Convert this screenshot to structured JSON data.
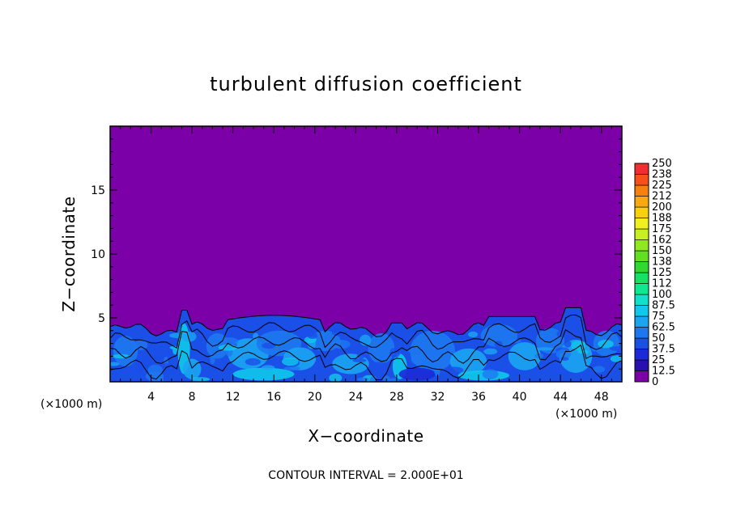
{
  "chart_data": {
    "type": "heatmap",
    "title": "turbulent diffusion coefficient",
    "xlabel": "X−coordinate",
    "ylabel": "Z−coordinate",
    "x_unit": "(×1000 m)",
    "y_unit": "(×1000 m)",
    "xlim": [
      0,
      50
    ],
    "ylim": [
      0,
      20
    ],
    "x_ticks": [
      4,
      8,
      12,
      16,
      20,
      24,
      28,
      32,
      36,
      40,
      44,
      48
    ],
    "y_ticks": [
      5,
      10,
      15
    ],
    "colorbar_levels": [
      "0",
      "12.5",
      "25",
      "37.5",
      "50",
      "62.5",
      "75",
      "87.5",
      "100",
      "112",
      "125",
      "138",
      "150",
      "162",
      "175",
      "188",
      "200",
      "212",
      "225",
      "238",
      "250"
    ],
    "colorbar_colors": [
      "#7b00a8",
      "#2a0fb0",
      "#1b2ad8",
      "#1a4fe8",
      "#1d78f0",
      "#1ba4f2",
      "#10c8ea",
      "#12e0c8",
      "#10e890",
      "#18e060",
      "#30d830",
      "#60e020",
      "#90e820",
      "#c8f020",
      "#f0f020",
      "#f8d010",
      "#f8a810",
      "#f88010",
      "#f85018",
      "#f03030",
      "#f07878"
    ],
    "background_color": "#7b00a8",
    "contour_interval": "CONTOUR INTERVAL = 2.000E+01",
    "grid": false
  }
}
